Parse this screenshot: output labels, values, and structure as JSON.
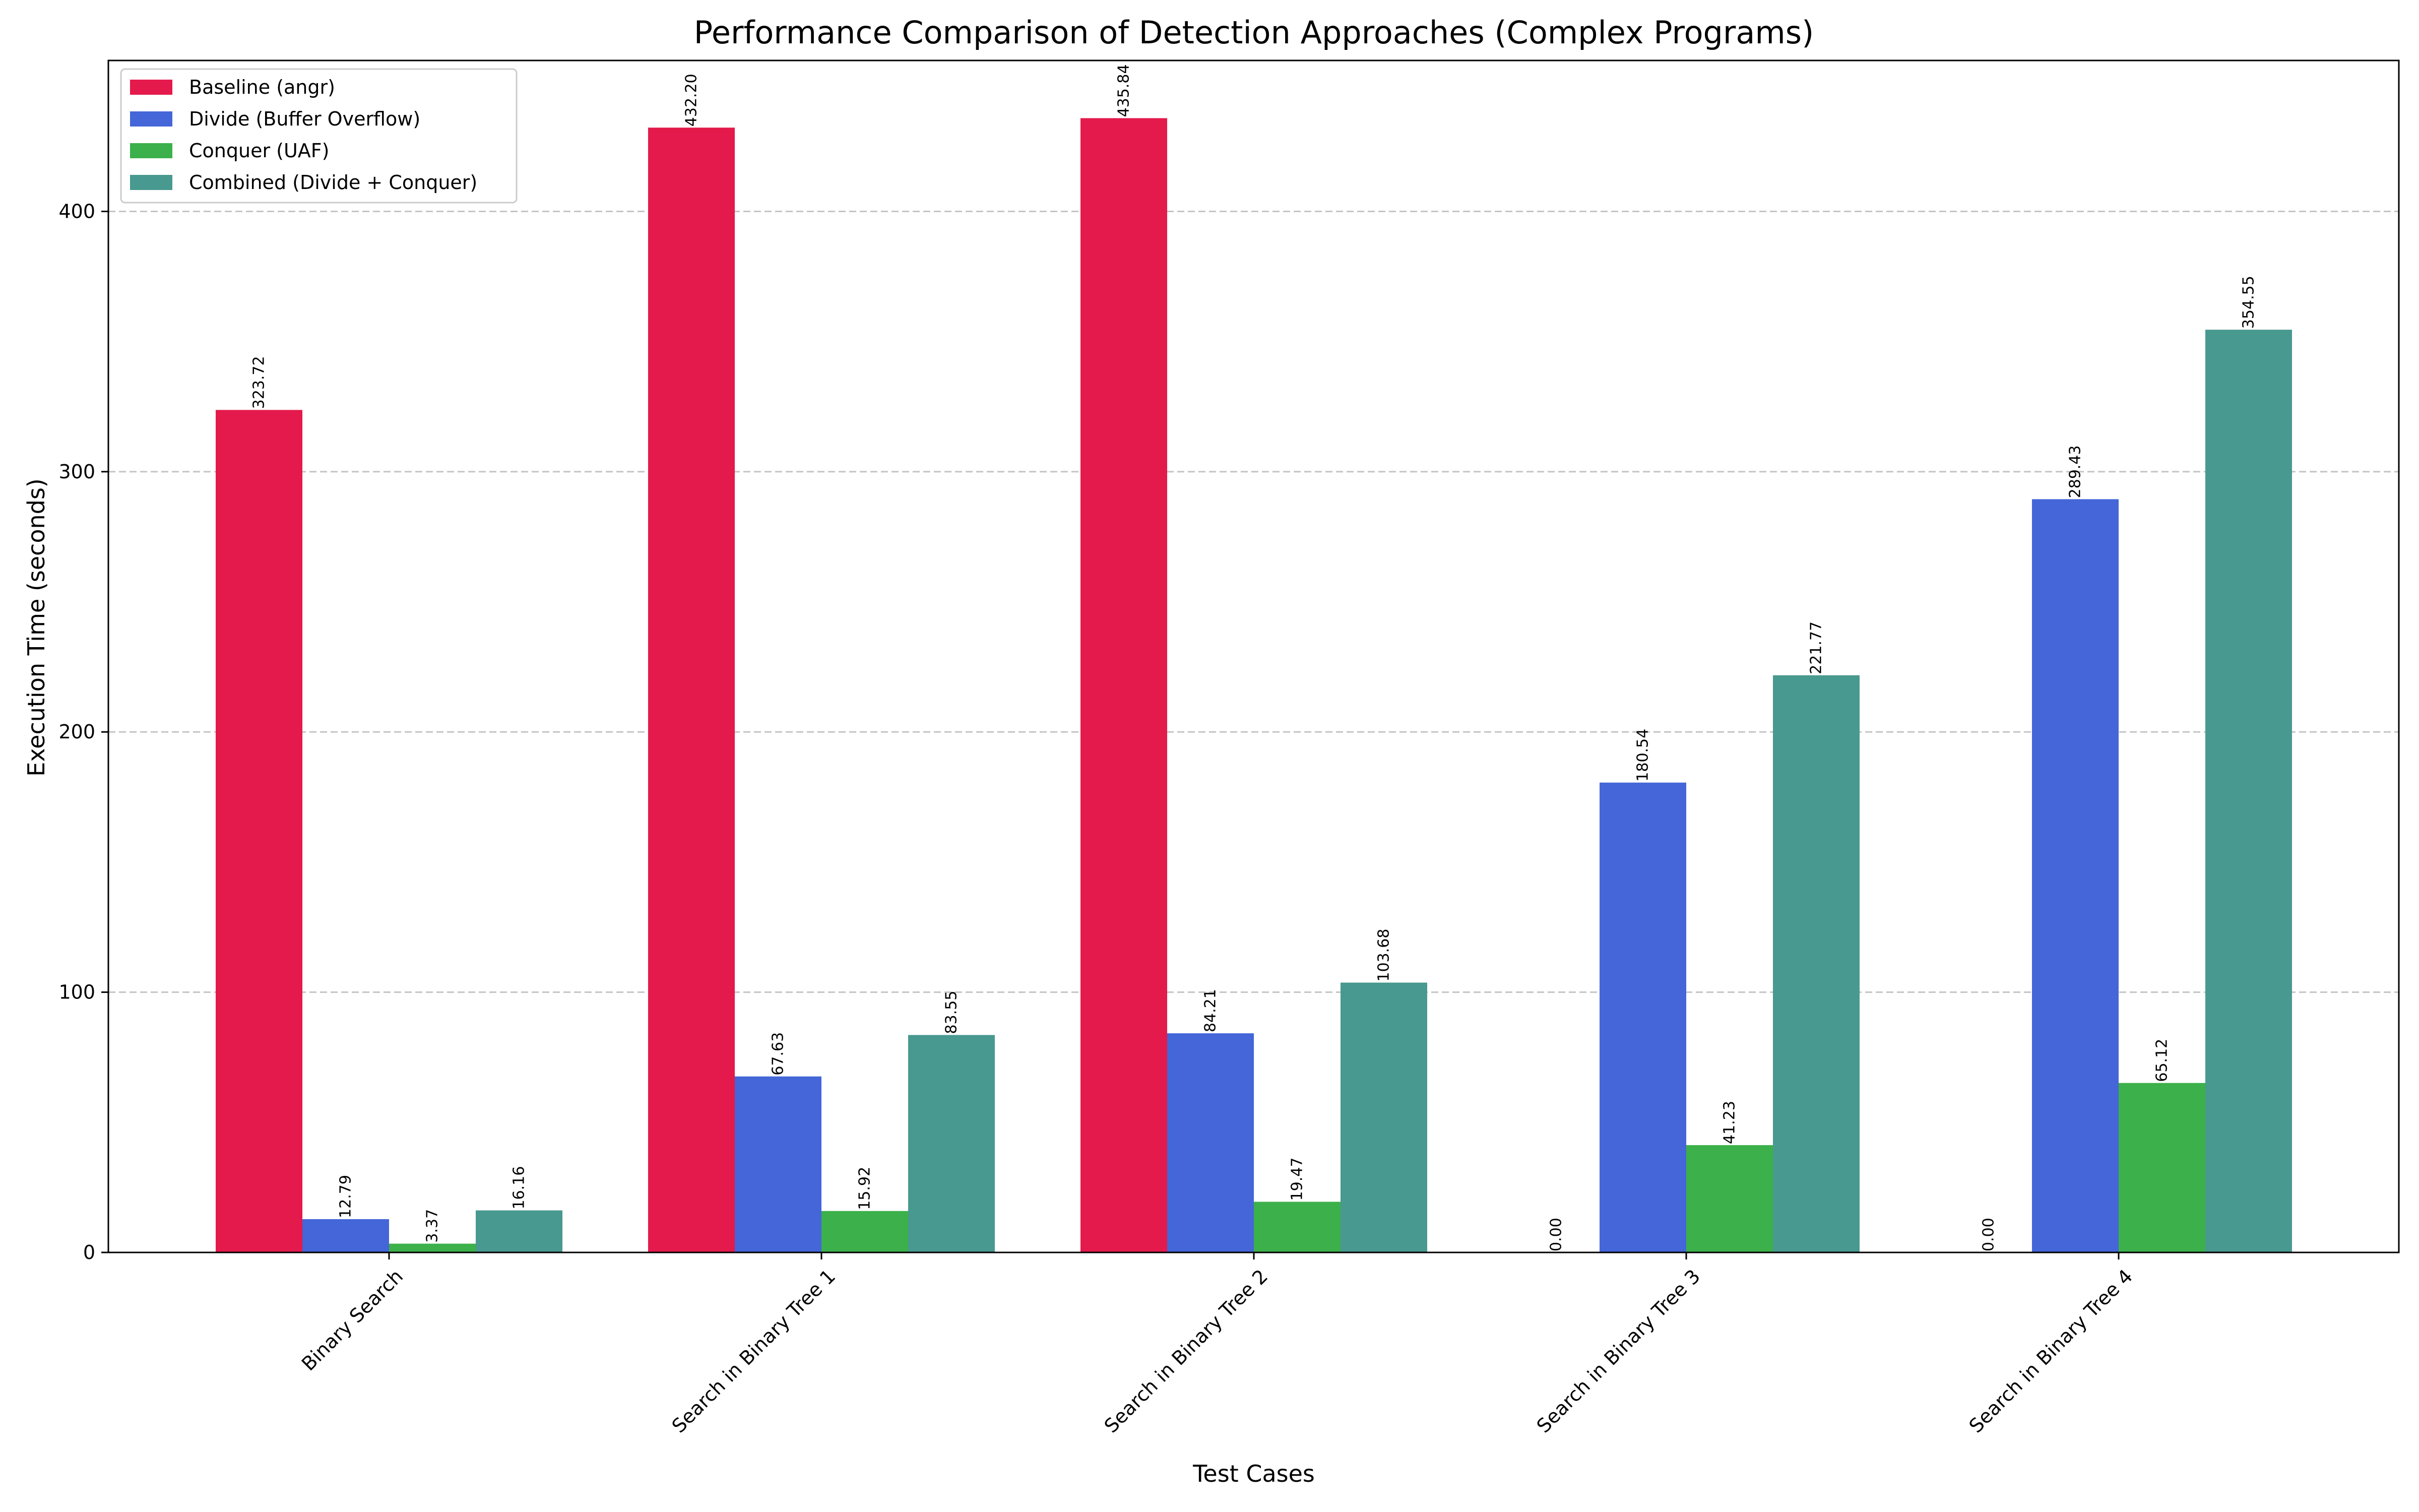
{
  "chart_data": {
    "type": "bar",
    "title": "Performance Comparison of Detection Approaches (Complex Programs)",
    "xlabel": "Test Cases",
    "ylabel": "Execution Time (seconds)",
    "ylim": [
      0,
      458
    ],
    "yticks": [
      0,
      100,
      200,
      300,
      400
    ],
    "grid": true,
    "legend_position": "top-left",
    "categories": [
      "Binary Search",
      "Search in Binary Tree 1",
      "Search in Binary Tree 2",
      "Search in Binary Tree 3",
      "Search in Binary Tree 4"
    ],
    "series": [
      {
        "name": "Baseline (angr)",
        "color": "#e31a4b",
        "values": [
          323.72,
          432.2,
          435.84,
          0.0,
          0.0
        ],
        "labels": [
          "323.72",
          "432.20",
          "435.84",
          "0.00",
          "0.00"
        ]
      },
      {
        "name": "Divide (Buffer Overflow)",
        "color": "#4466d8",
        "values": [
          12.79,
          67.63,
          84.21,
          180.54,
          289.43
        ],
        "labels": [
          "12.79",
          "67.63",
          "84.21",
          "180.54",
          "289.43"
        ]
      },
      {
        "name": "Conquer (UAF)",
        "color": "#3cb04a",
        "values": [
          3.37,
          15.92,
          19.47,
          41.23,
          65.12
        ],
        "labels": [
          "3.37",
          "15.92",
          "19.47",
          "41.23",
          "65.12"
        ]
      },
      {
        "name": "Combined (Divide + Conquer)",
        "color": "#48998f",
        "values": [
          16.16,
          83.55,
          103.68,
          221.77,
          354.55
        ],
        "labels": [
          "16.16",
          "83.55",
          "103.68",
          "221.77",
          "354.55"
        ]
      }
    ]
  }
}
